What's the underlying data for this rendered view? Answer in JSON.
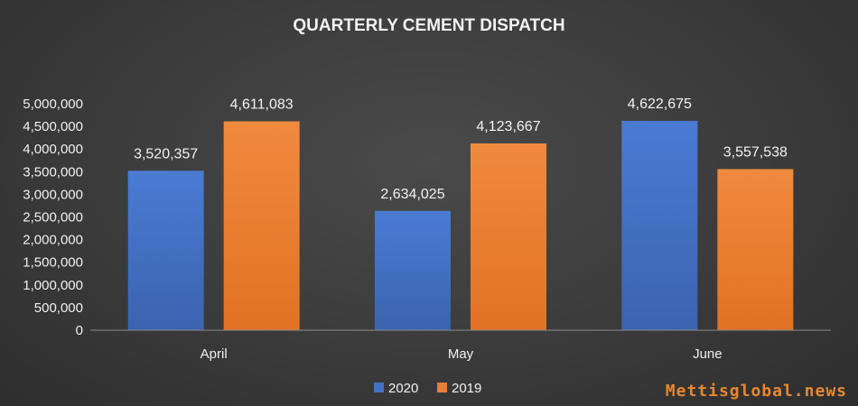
{
  "chart_data": {
    "type": "bar",
    "title": "QUARTERLY CEMENT DISPATCH",
    "categories": [
      "April",
      "May",
      "June"
    ],
    "series": [
      {
        "name": "2020",
        "values": [
          3520357,
          2634025,
          4622675
        ],
        "color": "#4472c4",
        "labels": [
          "3,520,357",
          "2,634,025",
          "4,622,675"
        ]
      },
      {
        "name": "2019",
        "values": [
          4611083,
          4123667,
          3557538
        ],
        "color": "#ed7d31",
        "labels": [
          "4,611,083",
          "4,123,667",
          "3,557,538"
        ]
      }
    ],
    "ylim": [
      0,
      5000000
    ],
    "ytick_step": 500000,
    "ytick_labels": [
      "0",
      "500,000",
      "1,000,000",
      "1,500,000",
      "2,000,000",
      "2,500,000",
      "3,000,000",
      "3,500,000",
      "4,000,000",
      "4,500,000",
      "5,000,000"
    ],
    "grid": false,
    "legend": "bottom"
  },
  "watermark": "Mettisglobal.news"
}
